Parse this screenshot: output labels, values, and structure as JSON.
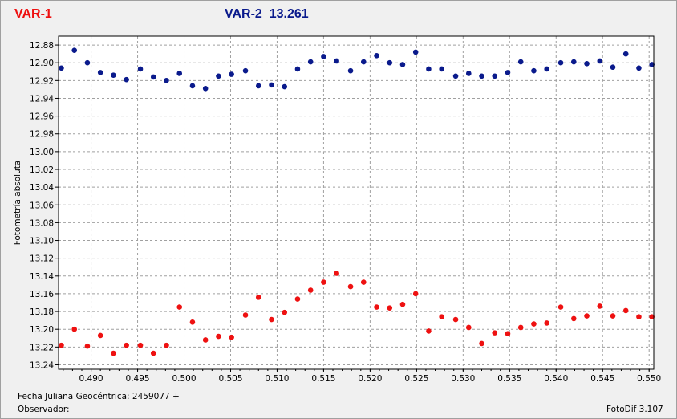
{
  "header": {
    "var1_label": "VAR-1",
    "var2_label": "VAR-2  13.261"
  },
  "footer": {
    "jd_label": "Fecha Juliana Geocéntrica: 2459077 +",
    "observer_label": "Observador:",
    "app_version": "FotoDif 3.107"
  },
  "colors": {
    "var1": "#ee1111",
    "var2": "#0a1a8c",
    "grid": "#a0a0a0",
    "plot_bg": "#ffffff"
  },
  "chart_data": {
    "type": "scatter",
    "ylabel": "Fotometría absoluta",
    "xlim": [
      0.4865,
      0.5505
    ],
    "ylim": [
      12.87,
      13.245
    ],
    "y_inverted": true,
    "grid": true,
    "x_ticks": [
      0.49,
      0.495,
      0.5,
      0.505,
      0.51,
      0.515,
      0.52,
      0.525,
      0.53,
      0.535,
      0.54,
      0.545,
      0.55
    ],
    "x_tick_labels": [
      "0.490",
      "0.495",
      "0.500",
      "0.505",
      "0.510",
      "0.515",
      "0.520",
      "0.525",
      "0.530",
      "0.535",
      "0.540",
      "0.545",
      "0.550"
    ],
    "y_ticks": [
      12.88,
      12.9,
      12.92,
      12.94,
      12.96,
      12.98,
      13.0,
      13.02,
      13.04,
      13.06,
      13.08,
      13.1,
      13.12,
      13.14,
      13.16,
      13.18,
      13.2,
      13.22,
      13.24
    ],
    "y_tick_labels": [
      "12.88",
      "12.90",
      "12.92",
      "12.94",
      "12.96",
      "12.98",
      "13.00",
      "13.02",
      "13.04",
      "13.06",
      "13.08",
      "13.10",
      "13.12",
      "13.14",
      "13.16",
      "13.18",
      "13.20",
      "13.22",
      "13.24"
    ],
    "series": [
      {
        "name": "VAR-1",
        "color": "#ee1111",
        "x": [
          0.4868,
          0.4882,
          0.4896,
          0.491,
          0.4924,
          0.4938,
          0.4953,
          0.4967,
          0.4981,
          0.4995,
          0.5009,
          0.5023,
          0.5037,
          0.5051,
          0.5066,
          0.508,
          0.5094,
          0.5108,
          0.5122,
          0.5136,
          0.515,
          0.5164,
          0.5179,
          0.5193,
          0.5207,
          0.5221,
          0.5235,
          0.5249,
          0.5263,
          0.5277,
          0.5292,
          0.5306,
          0.532,
          0.5334,
          0.5348,
          0.5362,
          0.5376,
          0.539,
          0.5405,
          0.5419,
          0.5433,
          0.5447,
          0.5461,
          0.5475,
          0.5489,
          0.5503
        ],
        "y": [
          13.218,
          13.2,
          13.219,
          13.207,
          13.227,
          13.218,
          13.218,
          13.227,
          13.218,
          13.175,
          13.192,
          13.212,
          13.208,
          13.209,
          13.184,
          13.164,
          13.189,
          13.181,
          13.166,
          13.156,
          13.147,
          13.137,
          13.152,
          13.147,
          13.175,
          13.176,
          13.172,
          13.16,
          13.202,
          13.186,
          13.189,
          13.198,
          13.216,
          13.204,
          13.205,
          13.198,
          13.194,
          13.193,
          13.175,
          13.188,
          13.185,
          13.174,
          13.185,
          13.179,
          13.186,
          13.186
        ]
      },
      {
        "name": "VAR-2",
        "color": "#0a1a8c",
        "x": [
          0.4868,
          0.4882,
          0.4896,
          0.491,
          0.4924,
          0.4938,
          0.4953,
          0.4967,
          0.4981,
          0.4995,
          0.5009,
          0.5023,
          0.5037,
          0.5051,
          0.5066,
          0.508,
          0.5094,
          0.5108,
          0.5122,
          0.5136,
          0.515,
          0.5164,
          0.5179,
          0.5193,
          0.5207,
          0.5221,
          0.5235,
          0.5249,
          0.5263,
          0.5277,
          0.5292,
          0.5306,
          0.532,
          0.5334,
          0.5348,
          0.5362,
          0.5376,
          0.539,
          0.5405,
          0.5419,
          0.5433,
          0.5447,
          0.5461,
          0.5475,
          0.5489,
          0.5503
        ],
        "y": [
          12.906,
          12.886,
          12.9,
          12.911,
          12.914,
          12.919,
          12.907,
          12.916,
          12.92,
          12.912,
          12.926,
          12.929,
          12.915,
          12.913,
          12.909,
          12.926,
          12.925,
          12.927,
          12.907,
          12.899,
          12.893,
          12.898,
          12.909,
          12.899,
          12.892,
          12.9,
          12.902,
          12.888,
          12.907,
          12.907,
          12.915,
          12.912,
          12.915,
          12.915,
          12.911,
          12.899,
          12.909,
          12.907,
          12.9,
          12.899,
          12.901,
          12.898,
          12.905,
          12.89,
          12.906,
          12.902
        ]
      }
    ]
  }
}
